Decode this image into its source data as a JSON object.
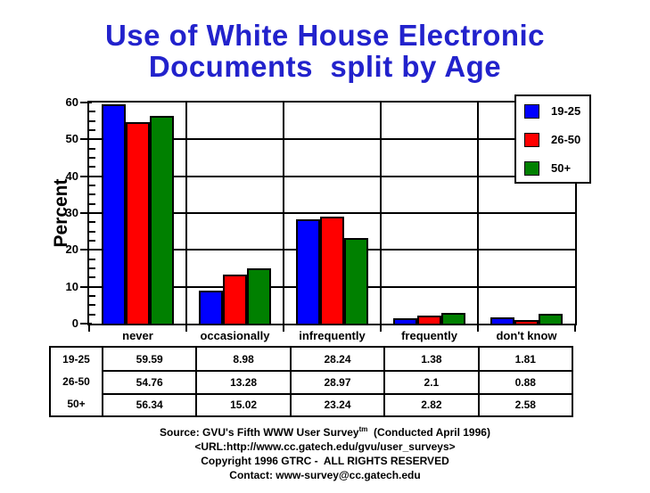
{
  "title": {
    "line1": "Use of White House Electronic",
    "line2": "Documents  split by Age",
    "color": "#2222cc"
  },
  "chart_data": {
    "type": "bar",
    "title": "Use of White House Electronic Documents split by Age",
    "xlabel": "",
    "ylabel": "Percent",
    "ylim": [
      0,
      60
    ],
    "y_ticks": [
      0,
      10,
      20,
      30,
      40,
      50,
      60
    ],
    "y_minor_tick_step": 2.5,
    "grid": "horizontal lines at major ticks, vertical lines at category boundaries",
    "legend_position": "top-right",
    "categories": [
      "never",
      "occasionally",
      "infrequently",
      "frequently",
      "don't know"
    ],
    "series": [
      {
        "name": "19-25",
        "color": "#0000ff",
        "values": [
          59.59,
          8.98,
          28.24,
          1.38,
          1.81
        ]
      },
      {
        "name": "26-50",
        "color": "#ff0000",
        "values": [
          54.76,
          13.28,
          28.97,
          2.1,
          0.88
        ]
      },
      {
        "name": "50+",
        "color": "#008000",
        "values": [
          56.34,
          15.02,
          23.24,
          2.82,
          2.58
        ]
      }
    ]
  },
  "table": {
    "row_labels": [
      "19-25",
      "26-50",
      "50+"
    ],
    "rows": [
      [
        "59.59",
        "8.98",
        "28.24",
        "1.38",
        "1.81"
      ],
      [
        "54.76",
        "13.28",
        "28.97",
        "2.1",
        "0.88"
      ],
      [
        "56.34",
        "15.02",
        "23.24",
        "2.82",
        "2.58"
      ]
    ]
  },
  "footer": {
    "source_prefix": "Source: GVU's Fifth WWW User Survey",
    "source_sup": "tm",
    "source_suffix": "  (Conducted April 1996)",
    "url": "<URL:http://www.cc.gatech.edu/gvu/user_surveys>",
    "copyright": "Copyright 1996 GTRC -  ALL RIGHTS RESERVED",
    "contact": "Contact: www-survey@cc.gatech.edu"
  },
  "colors": {
    "background": "#ffffff",
    "axis_and_text": "#000000",
    "title_blue": "#2222cc",
    "bar_blue": "#0000ff",
    "bar_red": "#ff0000",
    "bar_green": "#008000"
  }
}
